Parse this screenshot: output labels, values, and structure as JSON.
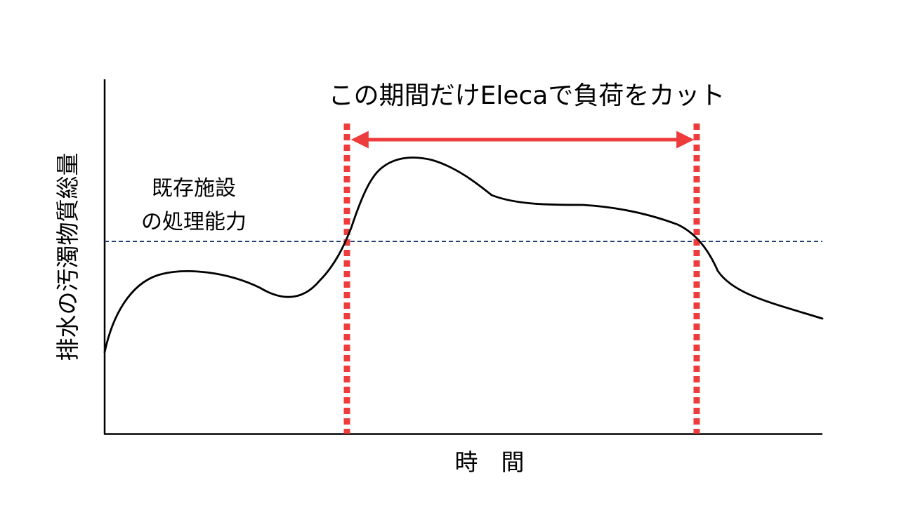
{
  "annotation": {
    "text": "この期間だけElecaで負荷をカット"
  },
  "capacity_label": {
    "line1": "既存施設",
    "line2": "の処理能力"
  },
  "axes": {
    "y_label": "排水の汚濁物質総量",
    "x_label": "時　間"
  },
  "colors": {
    "curve": "#000000",
    "axis": "#000000",
    "capacity_line": "#1f3f72",
    "marker": "#ee3b3b"
  }
}
